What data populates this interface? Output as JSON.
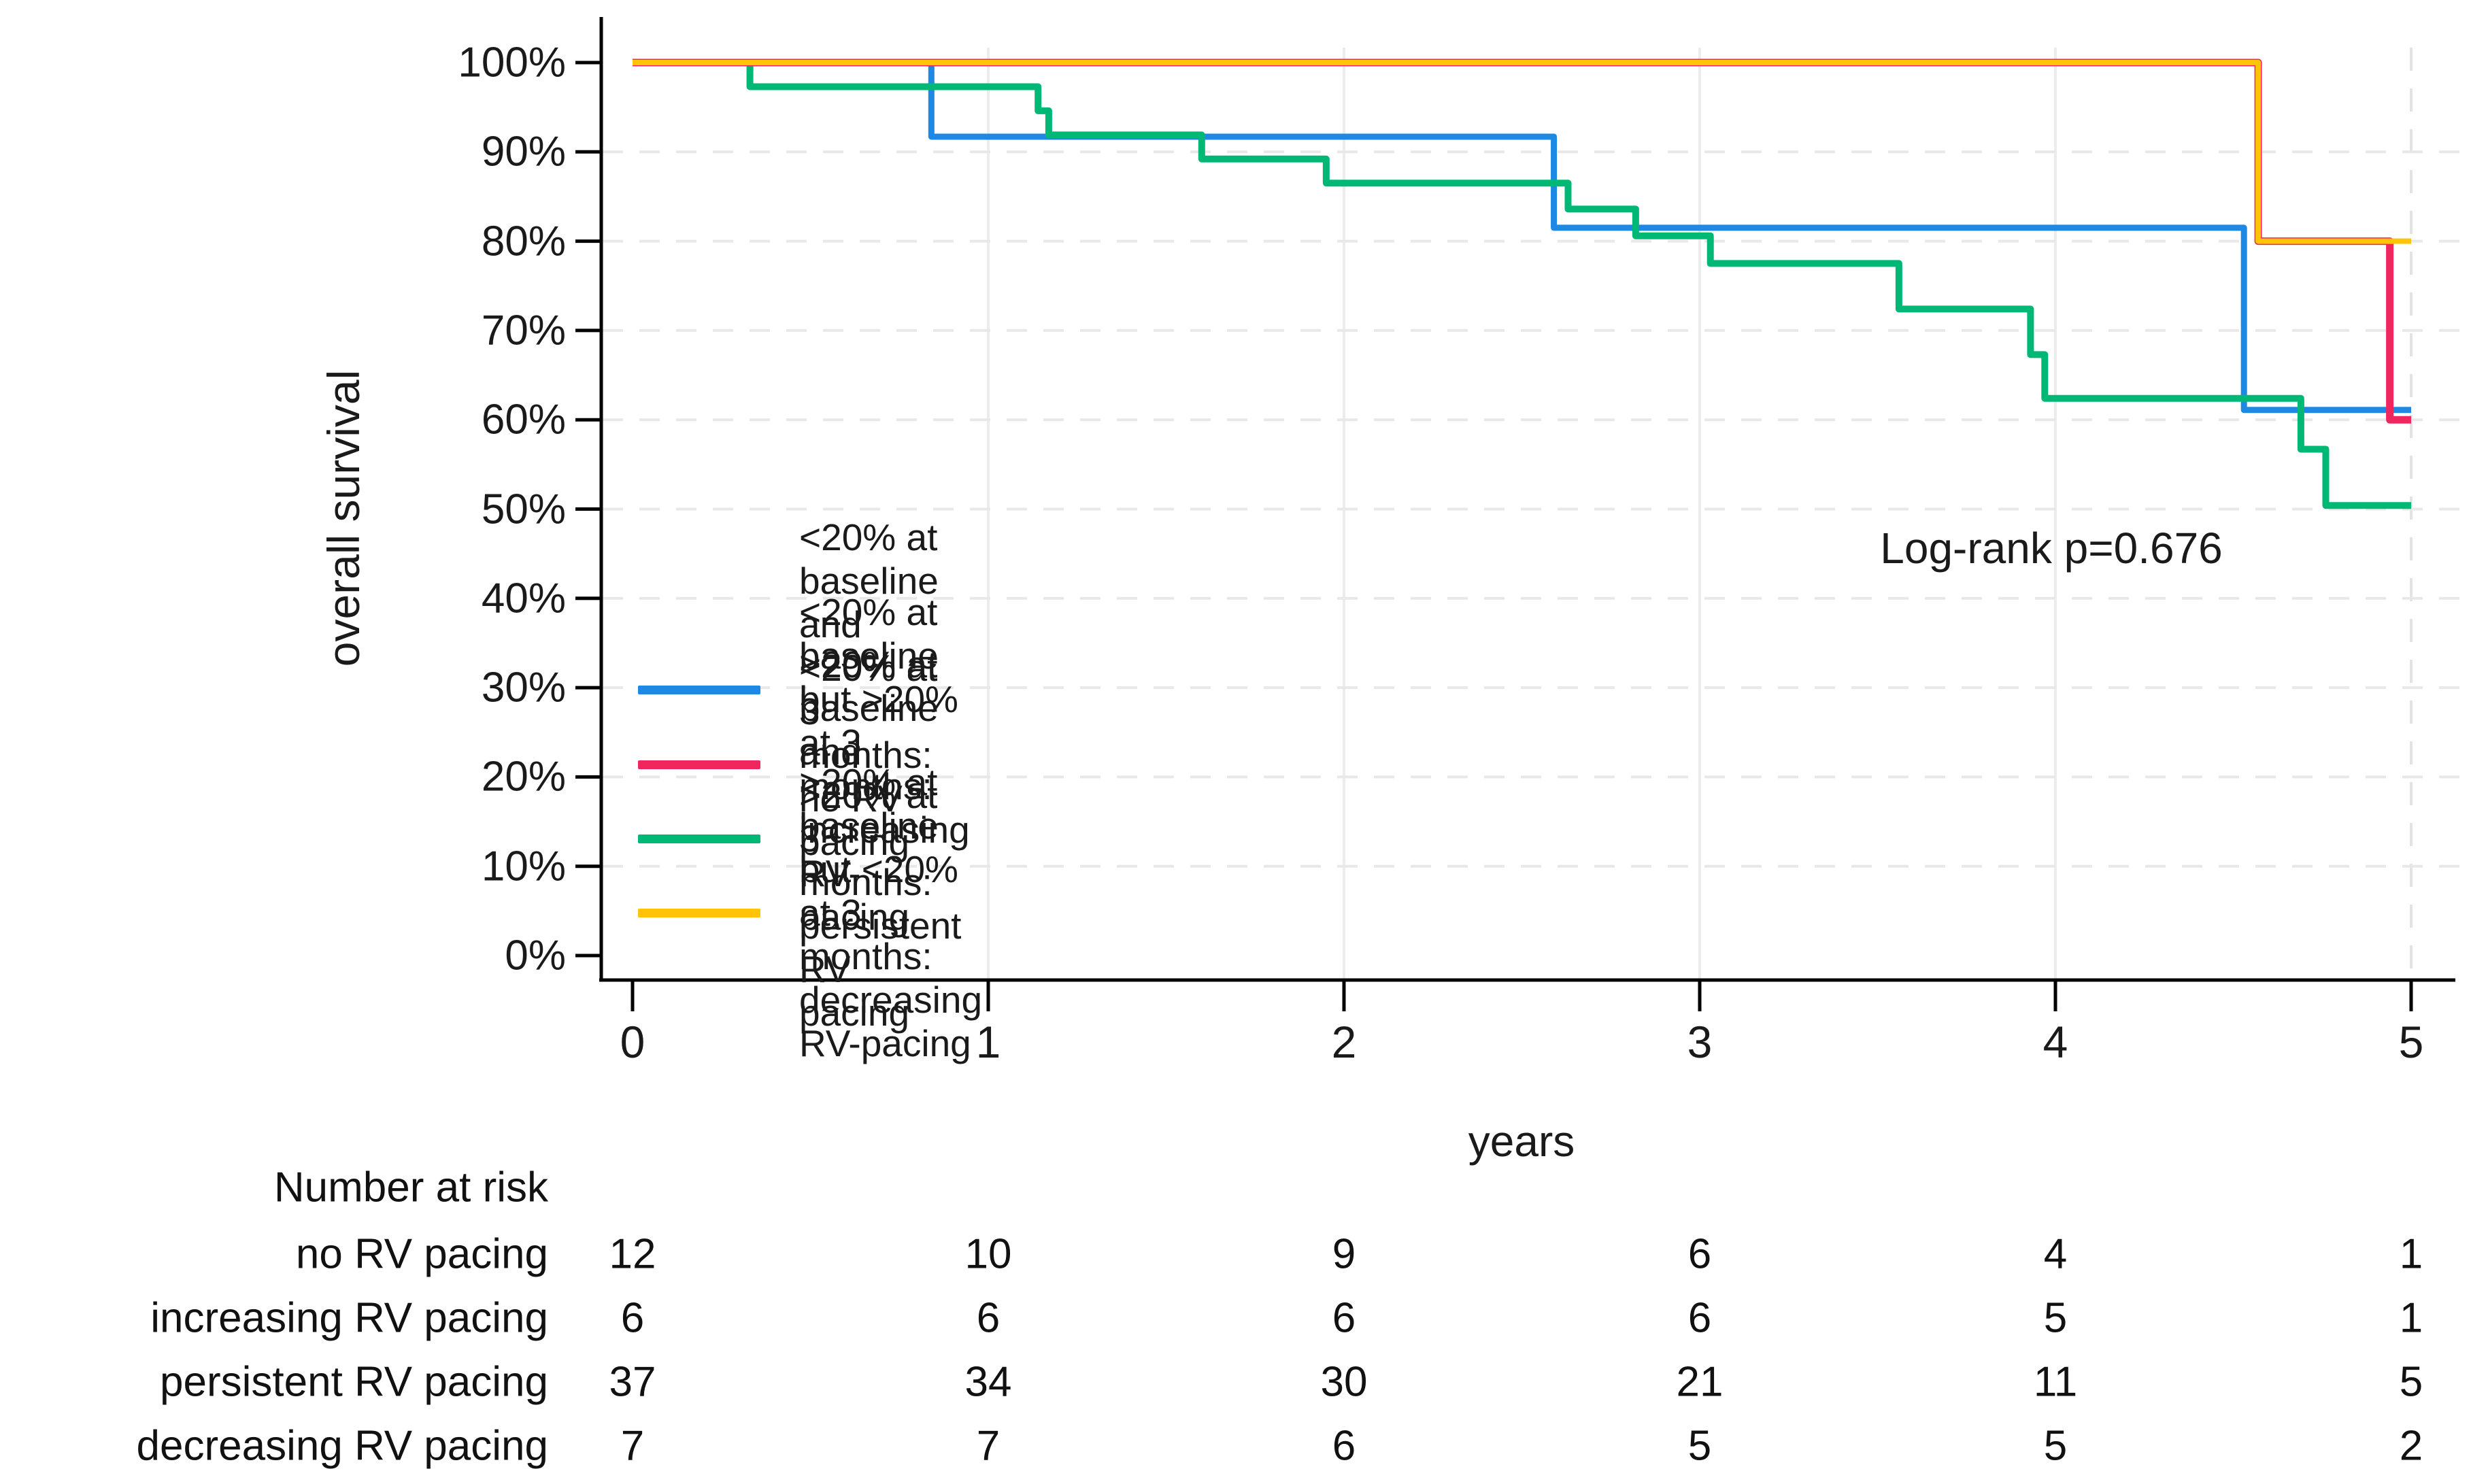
{
  "chart_data": {
    "type": "line",
    "variant": "kaplan-meier-step",
    "title": "",
    "xlabel": "years",
    "ylabel": "overall survival",
    "annotation": "Log-rank p=0.676",
    "xlim": [
      0,
      5
    ],
    "ylim": [
      0,
      100
    ],
    "x_ticks": [
      0,
      1,
      2,
      3,
      4,
      5
    ],
    "y_ticks": [
      100,
      90,
      80,
      70,
      60,
      50,
      40,
      30,
      20,
      10,
      0
    ],
    "y_tick_suffix": "%",
    "grid": {
      "horizontal_dashed_at": [
        90,
        80,
        70,
        60,
        50,
        40,
        30,
        20,
        10
      ],
      "vertical_solid_at": [
        1,
        2,
        3,
        4
      ],
      "vertical_dashed_at": [
        5
      ]
    },
    "legend_position": "inside-lower-left",
    "series": [
      {
        "name": "<20% at baseline and <20% at 3 months: no RV pacing",
        "key": "no_rv_pacing",
        "color": "#1E88E5",
        "points": [
          [
            0,
            100
          ],
          [
            0.84,
            100
          ],
          [
            0.84,
            91.7
          ],
          [
            2.59,
            91.7
          ],
          [
            2.59,
            81.5
          ],
          [
            4.53,
            81.5
          ],
          [
            4.53,
            61.1
          ],
          [
            5,
            61.1
          ]
        ]
      },
      {
        "name": "<20% at baseline but >20% at 3 months: increasing RV-pacing",
        "key": "increasing_rv_pacing",
        "color": "#F0265F",
        "points": [
          [
            0,
            100
          ],
          [
            4.57,
            100
          ],
          [
            4.57,
            80
          ],
          [
            4.94,
            80
          ],
          [
            4.94,
            60
          ],
          [
            5,
            60
          ]
        ]
      },
      {
        "name": ">20% at baseline and >20% at 3 months: persistent RV pacing",
        "key": "persistent_rv_pacing",
        "color": "#00B876",
        "points": [
          [
            0,
            100
          ],
          [
            0.33,
            100
          ],
          [
            0.33,
            97.3
          ],
          [
            1.14,
            97.3
          ],
          [
            1.14,
            94.6
          ],
          [
            1.17,
            94.6
          ],
          [
            1.17,
            91.9
          ],
          [
            1.6,
            91.9
          ],
          [
            1.6,
            89.2
          ],
          [
            1.95,
            89.2
          ],
          [
            1.95,
            86.5
          ],
          [
            2.63,
            86.5
          ],
          [
            2.63,
            83.6
          ],
          [
            2.82,
            83.6
          ],
          [
            2.82,
            80.6
          ],
          [
            3.03,
            80.6
          ],
          [
            3.03,
            77.5
          ],
          [
            3.56,
            77.5
          ],
          [
            3.56,
            72.4
          ],
          [
            3.93,
            72.4
          ],
          [
            3.93,
            67.3
          ],
          [
            3.97,
            67.3
          ],
          [
            3.97,
            62.4
          ],
          [
            4.69,
            62.4
          ],
          [
            4.69,
            56.7
          ],
          [
            4.76,
            56.7
          ],
          [
            4.76,
            50.4
          ],
          [
            5,
            50.4
          ]
        ]
      },
      {
        "name": ">20% at baseline but <20% at 3 months: decreasing RV-pacing",
        "key": "decreasing_rv_pacing",
        "color": "#FFC408",
        "points": [
          [
            0,
            100
          ],
          [
            4.57,
            100
          ],
          [
            4.57,
            80
          ],
          [
            5,
            80
          ]
        ]
      }
    ]
  },
  "risk_table": {
    "title": "Number at risk",
    "time_points": [
      0,
      1,
      2,
      3,
      4,
      5
    ],
    "rows": [
      {
        "label": "no RV pacing",
        "series": "no_rv_pacing",
        "counts": [
          12,
          10,
          9,
          6,
          4,
          1
        ]
      },
      {
        "label": "increasing RV pacing",
        "series": "increasing_rv_pacing",
        "counts": [
          6,
          6,
          6,
          6,
          5,
          1
        ]
      },
      {
        "label": "persistent RV pacing",
        "series": "persistent_rv_pacing",
        "counts": [
          37,
          34,
          30,
          21,
          11,
          5
        ]
      },
      {
        "label": "decreasing RV pacing",
        "series": "decreasing_rv_pacing",
        "counts": [
          7,
          7,
          6,
          5,
          5,
          2
        ]
      }
    ]
  }
}
